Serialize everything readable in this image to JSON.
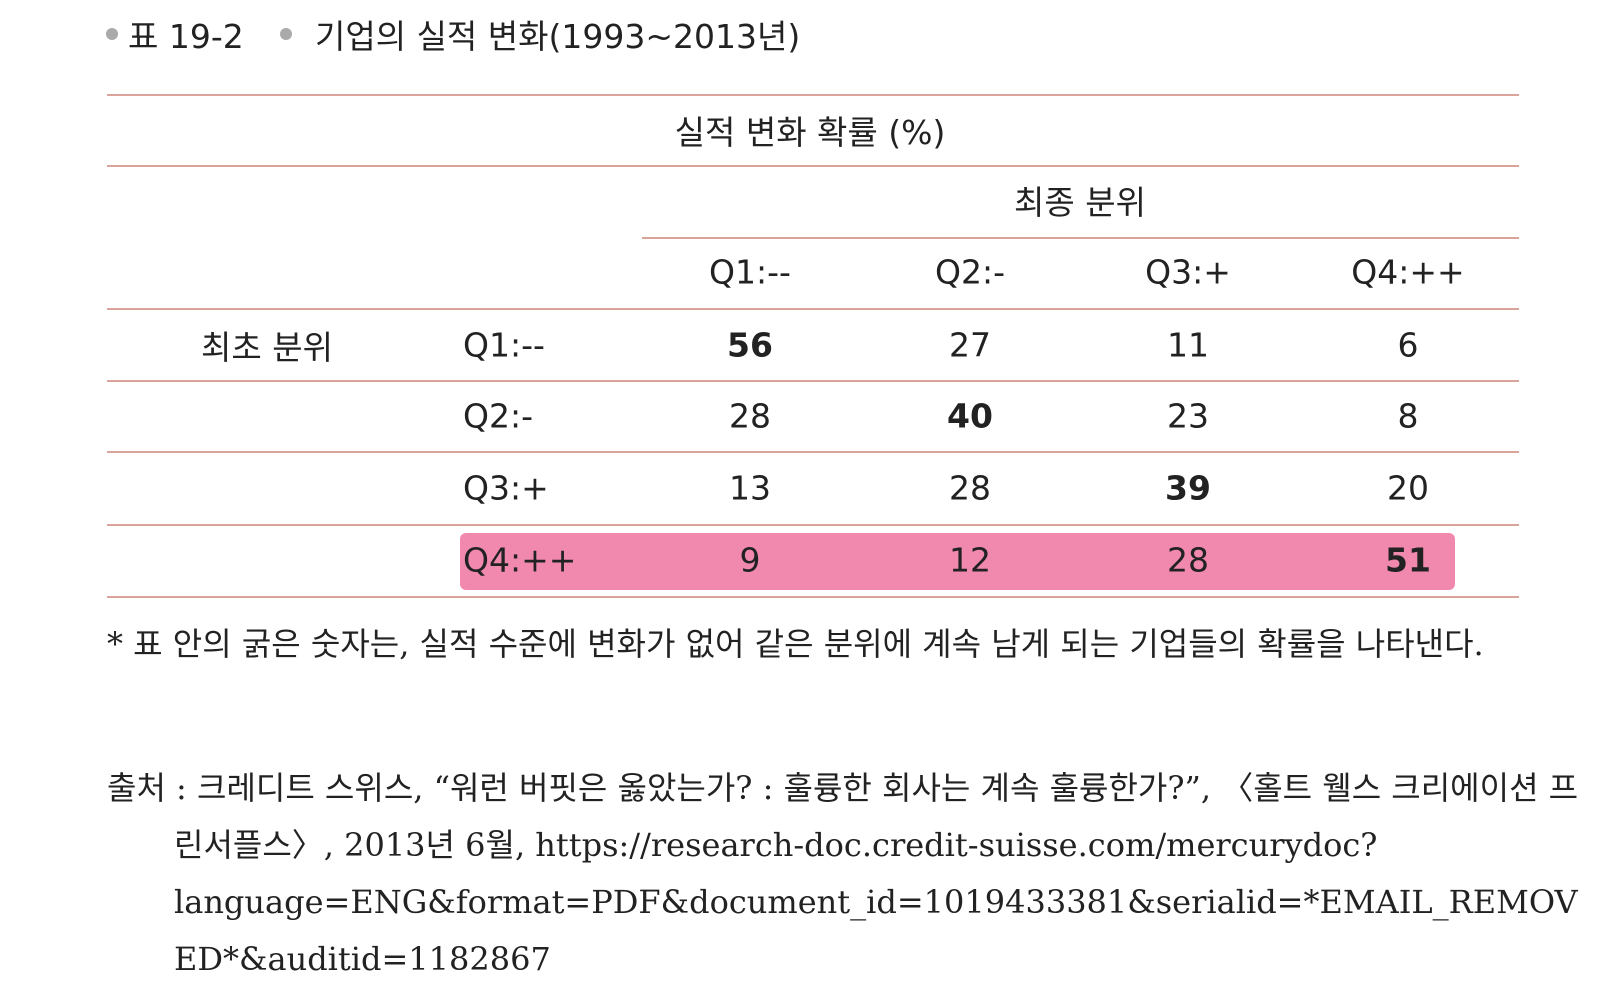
{
  "caption": {
    "label": "표 19-2",
    "title": "기업의 실적 변화(1993~2013년)"
  },
  "table": {
    "title": "실적 변화 확률 (%)",
    "column_group": "최종 분위",
    "columns": [
      "Q1:--",
      "Q2:-",
      "Q3:+",
      "Q4:++"
    ],
    "row_group": "최초 분위",
    "rows": [
      {
        "label": "Q1:--",
        "values": [
          56,
          27,
          11,
          6
        ]
      },
      {
        "label": "Q2:-",
        "values": [
          28,
          40,
          23,
          8
        ]
      },
      {
        "label": "Q3:+",
        "values": [
          13,
          28,
          39,
          20
        ]
      },
      {
        "label": "Q4:++",
        "values": [
          9,
          12,
          28,
          51
        ]
      }
    ]
  },
  "note": "* 표 안의 굵은 숫자는, 실적 수준에 변화가 없어 같은 분위에 계속 남게 되는 기업들의 확률을 나타낸다.",
  "source": "출처 : 크레디트 스위스, “워런 버핏은 옳았는가? : 훌륭한 회사는 계속 훌륭한가?”, 〈홀트 웰스 크리에이션 프린서플스〉, 2013년 6월, https://research-doc.credit-suisse.com/mercurydoc?language=ENG&format=PDF&document_id=1019433381&serialid=*EMAIL_REMOVED*&auditid=1182867"
}
